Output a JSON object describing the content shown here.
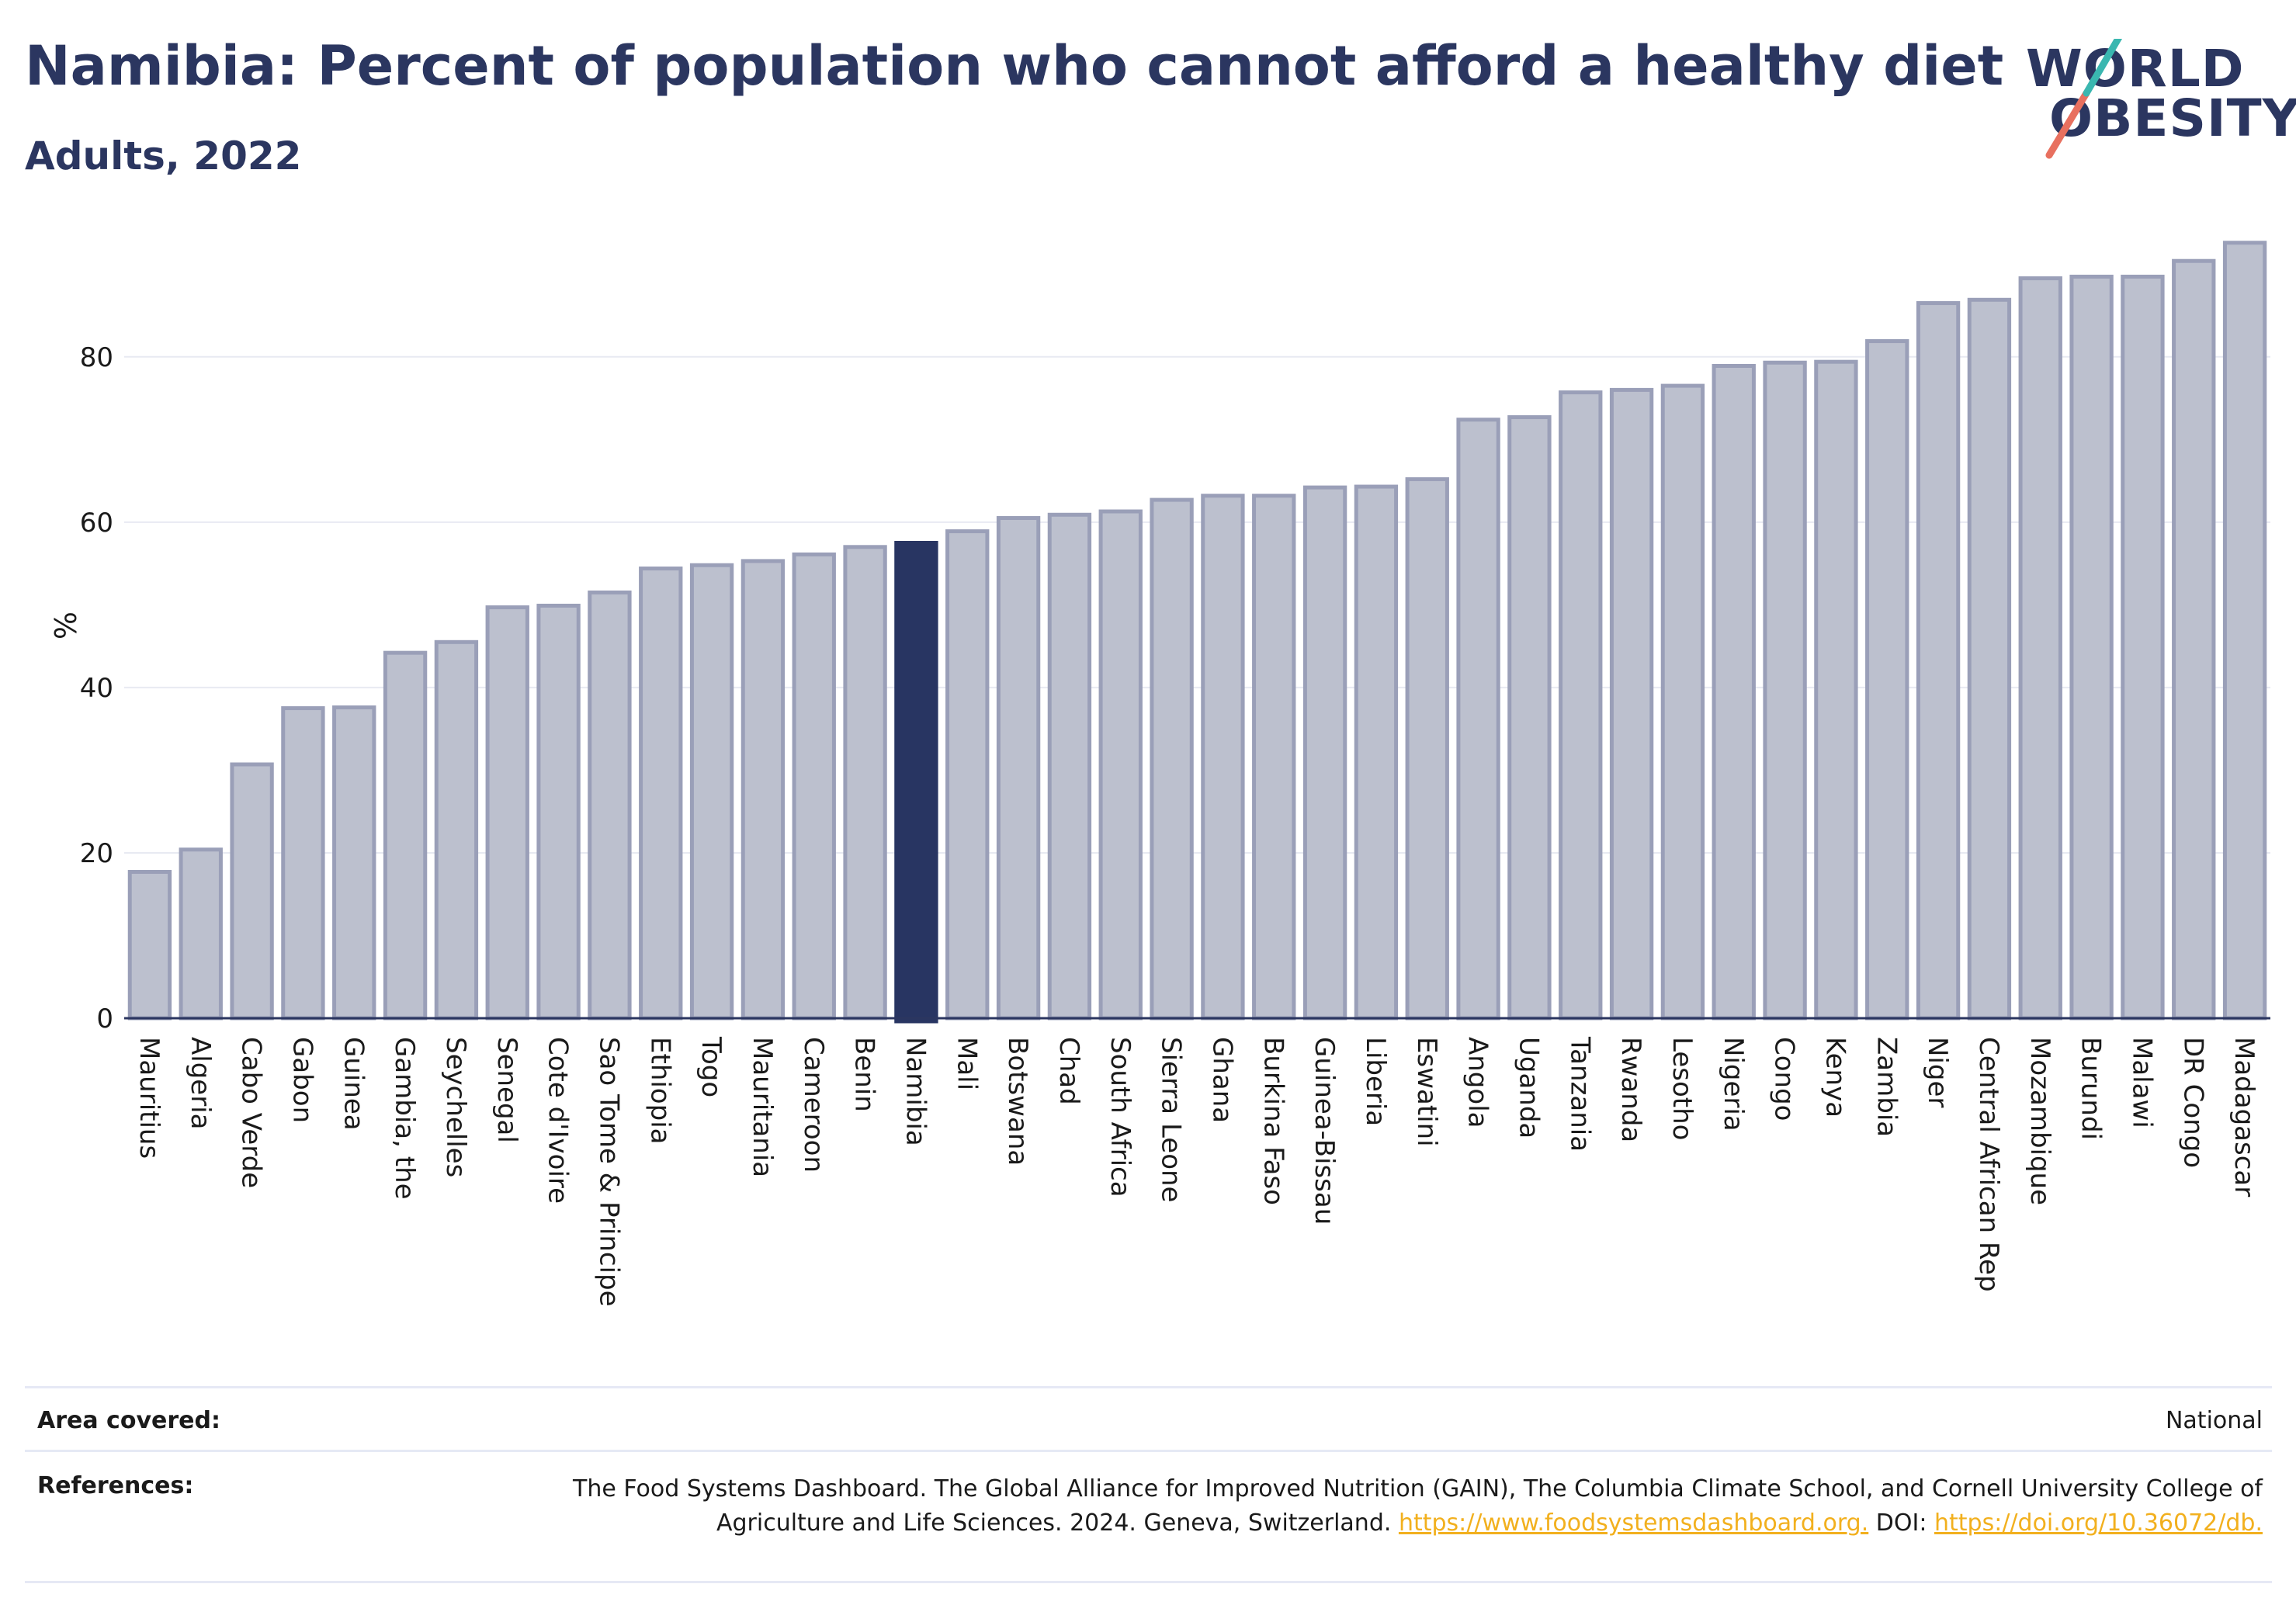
{
  "header": {
    "title": "Namibia: Percent of population who cannot afford a healthy diet",
    "subtitle": "Adults, 2022",
    "logo_line1": "WORLD",
    "logo_line2": "OBESITY"
  },
  "colors": {
    "bar": "#bcc0ce",
    "bar_border": "#9a9fb8",
    "highlight": "#283562",
    "text": "#2b3660",
    "link": "#f2b01e"
  },
  "chart_data": {
    "type": "bar",
    "title": "Namibia: Percent of population who cannot afford a healthy diet",
    "subtitle": "Adults, 2022",
    "ylabel": "%",
    "xlabel": "",
    "ylim": [
      0,
      95
    ],
    "yticks": [
      0,
      20,
      40,
      60,
      80
    ],
    "grid": true,
    "highlight": "Namibia",
    "categories": [
      "Mauritius",
      "Algeria",
      "Cabo Verde",
      "Gabon",
      "Guinea",
      "Gambia, the",
      "Seychelles",
      "Senegal",
      "Cote d'Ivoire",
      "Sao Tome & Principe",
      "Ethiopia",
      "Togo",
      "Mauritania",
      "Cameroon",
      "Benin",
      "Namibia",
      "Mali",
      "Botswana",
      "Chad",
      "South Africa",
      "Sierra Leone",
      "Ghana",
      "Burkina Faso",
      "Guinea-Bissau",
      "Liberia",
      "Eswatini",
      "Angola",
      "Uganda",
      "Tanzania",
      "Rwanda",
      "Lesotho",
      "Nigeria",
      "Congo",
      "Kenya",
      "Zambia",
      "Niger",
      "Central African Rep",
      "Mozambique",
      "Burundi",
      "Malawi",
      "DR Congo",
      "Madagascar"
    ],
    "values": [
      17.7,
      20.4,
      30.7,
      37.5,
      37.6,
      44.2,
      45.5,
      49.7,
      49.9,
      51.5,
      54.4,
      54.8,
      55.3,
      56.1,
      57.0,
      57.5,
      58.9,
      60.5,
      60.9,
      61.3,
      62.7,
      63.2,
      63.2,
      64.2,
      64.3,
      65.2,
      72.4,
      72.7,
      75.7,
      76.0,
      76.5,
      78.9,
      79.3,
      79.4,
      81.9,
      86.5,
      86.9,
      89.5,
      89.7,
      89.7,
      91.6,
      93.8
    ]
  },
  "footer": {
    "area_label": "Area covered:",
    "area_value": "National",
    "references_label": "References:",
    "references_text": "The Food Systems Dashboard. The Global Alliance for Improved Nutrition (GAIN), The Columbia Climate School, and Cornell University College of Agriculture and Life Sciences. 2024. Geneva, Switzerland. ",
    "references_link1": "https://www.foodsystemsdashboard.org.",
    "references_doi": " DOI: ",
    "references_link2": "https://doi.org/10.36072/db."
  }
}
